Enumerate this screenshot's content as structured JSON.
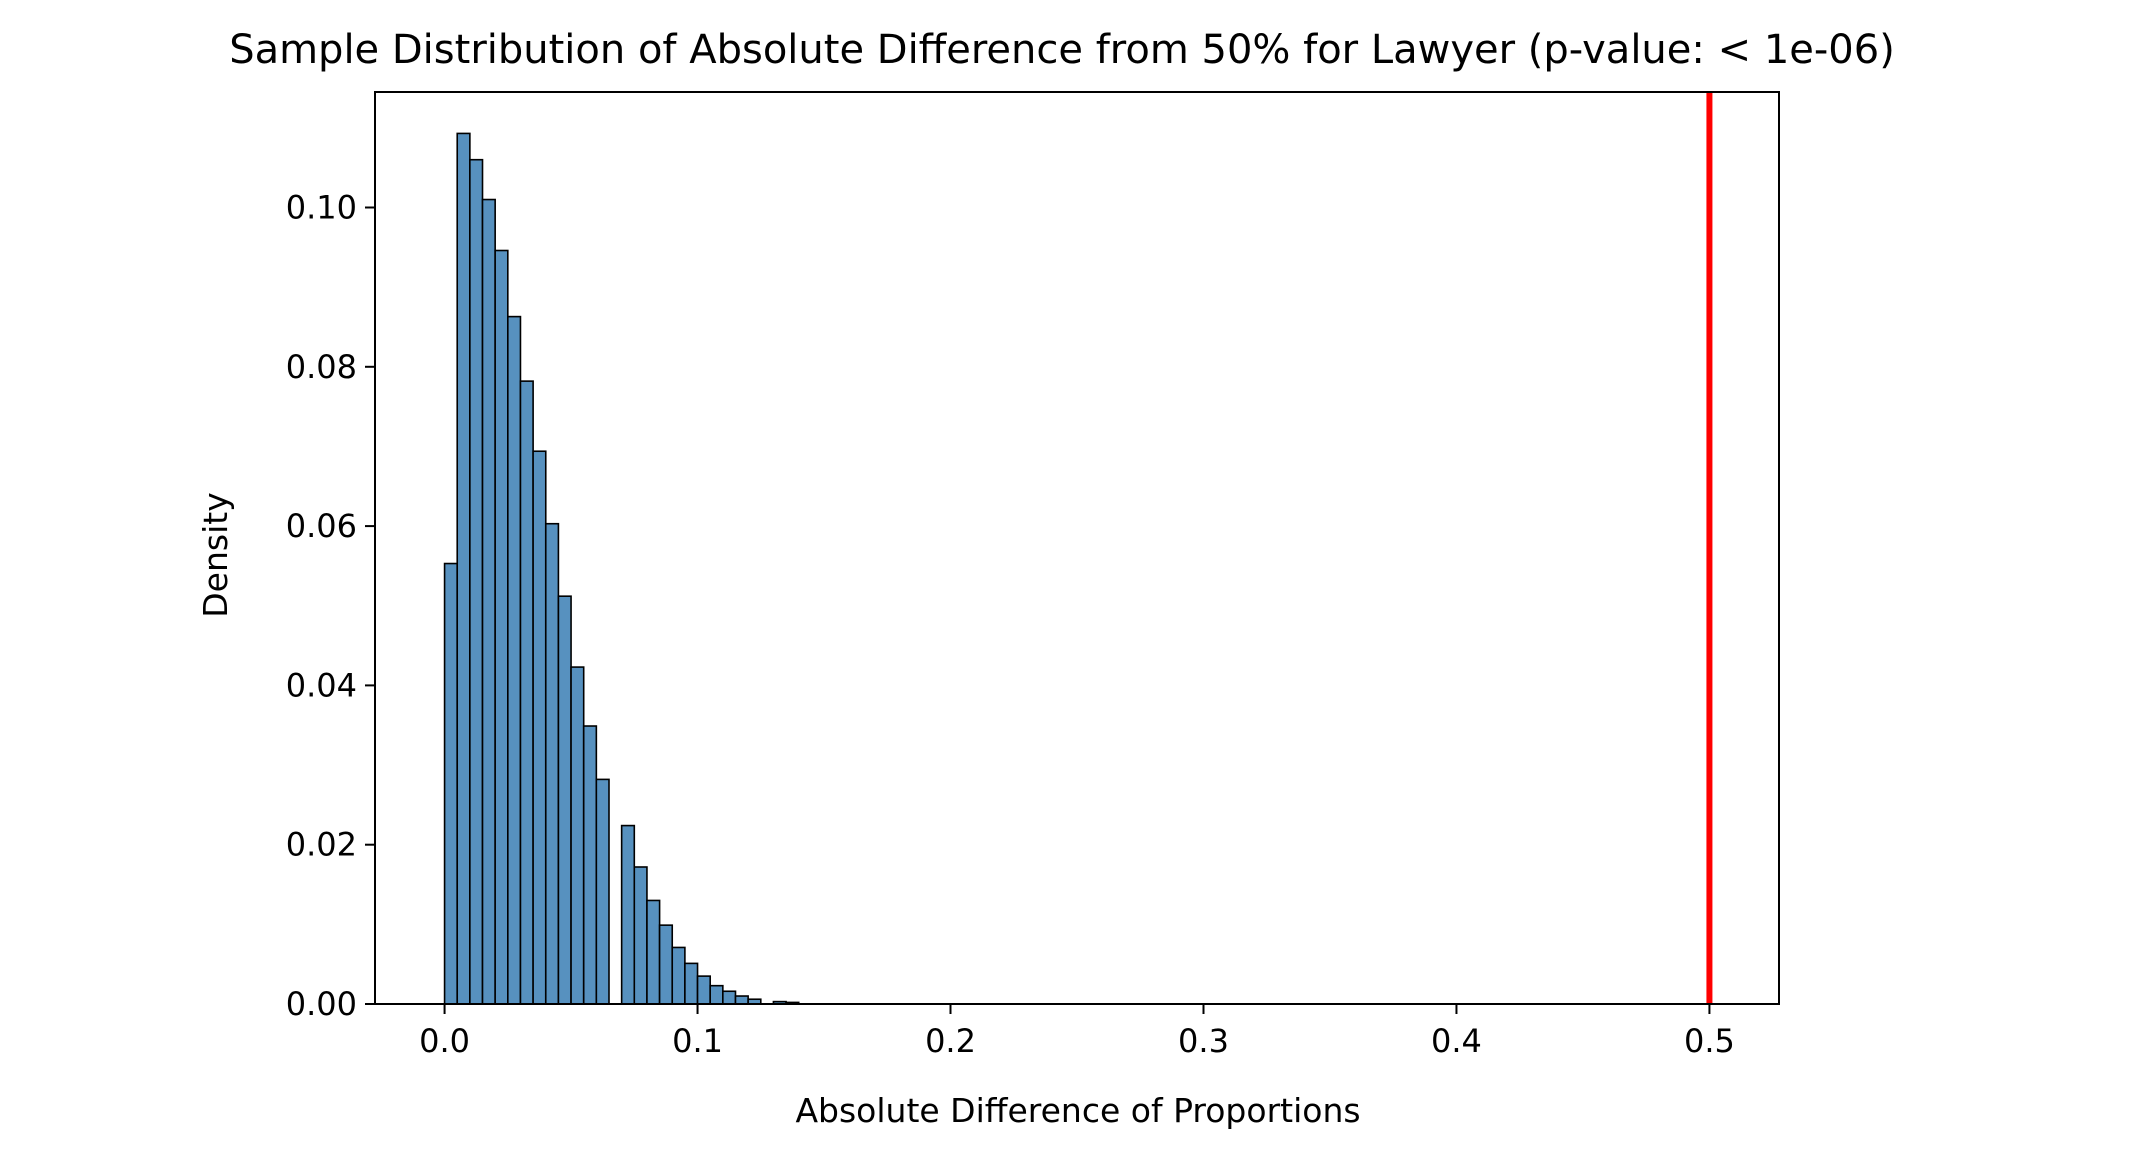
{
  "chart_data": {
    "type": "bar",
    "title": "Sample Distribution of Absolute Difference from 50% for Lawyer (p-value: < 1e-06)",
    "xlabel": "Absolute Difference of Proportions",
    "ylabel": "Density",
    "xlim": [
      -0.0275,
      0.5275
    ],
    "ylim": [
      0,
      0.1145
    ],
    "xticks": [
      0.0,
      0.1,
      0.2,
      0.3,
      0.4,
      0.5
    ],
    "xtick_labels": [
      "0.0",
      "0.1",
      "0.2",
      "0.3",
      "0.4",
      "0.5"
    ],
    "yticks": [
      0.0,
      0.02,
      0.04,
      0.06,
      0.08,
      0.1
    ],
    "ytick_labels": [
      "0.00",
      "0.02",
      "0.04",
      "0.06",
      "0.08",
      "0.10"
    ],
    "bin_width": 0.005,
    "bins": [
      {
        "x": 0.0,
        "density": 0.0553
      },
      {
        "x": 0.005,
        "density": 0.1093
      },
      {
        "x": 0.01,
        "density": 0.106
      },
      {
        "x": 0.015,
        "density": 0.101
      },
      {
        "x": 0.02,
        "density": 0.0946
      },
      {
        "x": 0.025,
        "density": 0.0863
      },
      {
        "x": 0.03,
        "density": 0.0782
      },
      {
        "x": 0.035,
        "density": 0.0694
      },
      {
        "x": 0.04,
        "density": 0.0603
      },
      {
        "x": 0.045,
        "density": 0.0512
      },
      {
        "x": 0.05,
        "density": 0.0423
      },
      {
        "x": 0.055,
        "density": 0.0349
      },
      {
        "x": 0.06,
        "density": 0.0282
      },
      {
        "x": 0.065,
        "density": 0.0
      },
      {
        "x": 0.07,
        "density": 0.0224
      },
      {
        "x": 0.075,
        "density": 0.0172
      },
      {
        "x": 0.08,
        "density": 0.013
      },
      {
        "x": 0.085,
        "density": 0.0099
      },
      {
        "x": 0.09,
        "density": 0.0071
      },
      {
        "x": 0.095,
        "density": 0.0051
      },
      {
        "x": 0.1,
        "density": 0.0035
      },
      {
        "x": 0.105,
        "density": 0.0023
      },
      {
        "x": 0.11,
        "density": 0.0016
      },
      {
        "x": 0.115,
        "density": 0.001
      },
      {
        "x": 0.12,
        "density": 0.0006
      },
      {
        "x": 0.125,
        "density": 0.0
      },
      {
        "x": 0.13,
        "density": 0.0003
      },
      {
        "x": 0.135,
        "density": 0.0002
      }
    ],
    "bar_color": "#5791bf",
    "bar_edge_color": "#000000",
    "observed_line": {
      "x": 0.5,
      "color": "#ff0000"
    },
    "grid": false,
    "legend": "none"
  }
}
